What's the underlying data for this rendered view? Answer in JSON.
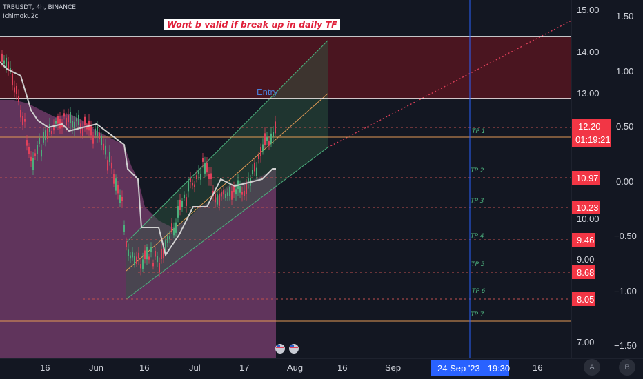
{
  "header": {
    "symbol": "TRBUSDT, 4h, BINANCE",
    "indicator": "Ichimoku2c"
  },
  "annotations": {
    "note": "Wont b valid if break up in daily TF",
    "entry": "Entry"
  },
  "tp_labels": [
    "TP 1",
    "TP 2",
    "TP 3",
    "TP 4",
    "TP 5",
    "TP 6",
    "TP 7"
  ],
  "price_axis": {
    "ticks": [
      "15.00",
      "14.00",
      "13.00",
      "10.00",
      "9.00",
      "7.00"
    ]
  },
  "secondary_axis": {
    "ticks": [
      "1.50",
      "1.00",
      "0.50",
      "0.00",
      "−0.50",
      "−1.00",
      "−1.50"
    ]
  },
  "price_tags": [
    {
      "label": "12.20",
      "sub": "01:19:21",
      "color": "#f23645"
    },
    {
      "label": "10.97",
      "color": "#f23645"
    },
    {
      "label": "10.23",
      "color": "#f23645"
    },
    {
      "label": "9.46",
      "color": "#f23645"
    },
    {
      "label": "8.68",
      "color": "#f23645"
    },
    {
      "label": "8.05",
      "color": "#f23645"
    }
  ],
  "time_axis": {
    "ticks": [
      "16",
      "Jun",
      "16",
      "Jul",
      "17",
      "Aug",
      "16",
      "Sep",
      "16"
    ]
  },
  "crosshair_label": "24 Sep '23   19:30",
  "buttons": {
    "auto": "A",
    "b": "B"
  },
  "colors": {
    "background": "#131722",
    "red_zone": "#4a1520",
    "cloud": "#6e3a66",
    "channel": "#3ba36b",
    "tp_line": "#c05050",
    "crosshair": "#2962ff",
    "note_text": "#e0203a"
  },
  "chart_data": {
    "type": "candlestick",
    "symbol": "TRBUSDT",
    "timeframe": "4h",
    "exchange": "BINANCE",
    "last_price": 12.2,
    "countdown": "01:19:21",
    "levels": [
      14.3,
      12.8,
      11.5
    ],
    "take_profits": [
      {
        "name": "TP 1",
        "price": 11.8
      },
      {
        "name": "TP 2",
        "price": 10.97
      },
      {
        "name": "TP 3",
        "price": 10.23
      },
      {
        "name": "TP 4",
        "price": 9.46
      },
      {
        "name": "TP 5",
        "price": 8.68
      },
      {
        "name": "TP 6",
        "price": 8.05
      },
      {
        "name": "TP 7",
        "price": 7.5
      }
    ],
    "ylim": [
      6.8,
      15.1
    ],
    "x_ticks": [
      "16",
      "Jun",
      "16",
      "Jul",
      "17",
      "Aug",
      "16",
      "Sep",
      "16"
    ]
  }
}
